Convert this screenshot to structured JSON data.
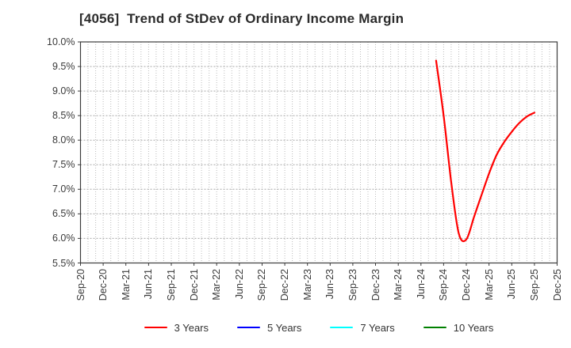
{
  "title": "[4056]  Trend of StDev of Ordinary Income Margin",
  "chart_data": {
    "type": "line",
    "title": "[4056]  Trend of StDev of Ordinary Income Margin",
    "xlabel": "",
    "ylabel": "",
    "y_axis": {
      "unit": "%",
      "min": 5.5,
      "max": 10.0,
      "step": 0.5,
      "tick_labels": [
        "10.0%",
        "9.5%",
        "9.0%",
        "8.5%",
        "8.0%",
        "7.5%",
        "7.0%",
        "6.5%",
        "6.0%",
        "5.5%"
      ]
    },
    "x_axis": {
      "tick_labels": [
        "Sep-20",
        "Dec-20",
        "Mar-21",
        "Jun-21",
        "Sep-21",
        "Dec-21",
        "Mar-22",
        "Jun-22",
        "Sep-22",
        "Dec-22",
        "Mar-23",
        "Jun-23",
        "Sep-23",
        "Dec-23",
        "Mar-24",
        "Jun-24",
        "Sep-24",
        "Dec-24",
        "Mar-25",
        "Jun-25",
        "Sep-25",
        "Dec-25"
      ],
      "months_per_tick": 3,
      "total_month_intervals": 63,
      "start_month": "Sep-20",
      "end_month": "Dec-25"
    },
    "grid": {
      "shown": true,
      "h_line_color": "#a8a8a8",
      "v_line_color": "#bcbcbc",
      "style": "dotted"
    },
    "legend_position": "bottom",
    "legend": [
      {
        "label": "3 Years",
        "color": "#ff0000"
      },
      {
        "label": "5 Years",
        "color": "#0000ff"
      },
      {
        "label": "7 Years",
        "color": "#00ffff"
      },
      {
        "label": "10 Years",
        "color": "#008000"
      }
    ],
    "series": [
      {
        "name": "3 Years",
        "color": "#ff0000",
        "points": [
          {
            "x": "Aug-24",
            "y": 9.62
          },
          {
            "x": "Sep-24",
            "y": 8.5
          },
          {
            "x": "Oct-24",
            "y": 7.15
          },
          {
            "x": "Nov-24",
            "y": 6.1
          },
          {
            "x": "Dec-24",
            "y": 5.98
          },
          {
            "x": "Jan-25",
            "y": 6.43
          },
          {
            "x": "Feb-25",
            "y": 6.88
          },
          {
            "x": "Mar-25",
            "y": 7.32
          },
          {
            "x": "Apr-25",
            "y": 7.7
          },
          {
            "x": "May-25",
            "y": 7.96
          },
          {
            "x": "Jun-25",
            "y": 8.17
          },
          {
            "x": "Jul-25",
            "y": 8.35
          },
          {
            "x": "Aug-25",
            "y": 8.48
          },
          {
            "x": "Sep-25",
            "y": 8.56
          }
        ]
      },
      {
        "name": "5 Years",
        "color": "#0000ff",
        "points": []
      },
      {
        "name": "7 Years",
        "color": "#00ffff",
        "points": []
      },
      {
        "name": "10 Years",
        "color": "#008000",
        "points": []
      }
    ]
  }
}
